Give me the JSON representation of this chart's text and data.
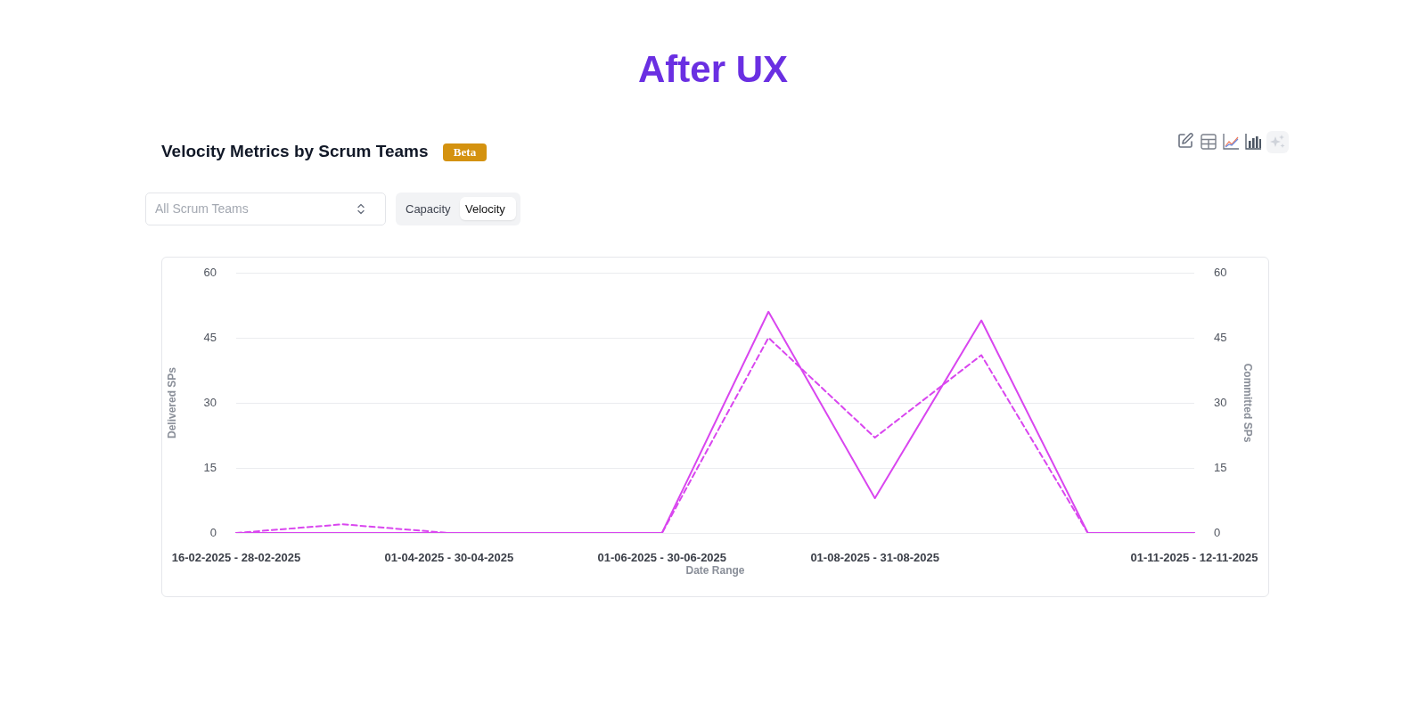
{
  "chart_data": {
    "type": "line",
    "title": "After UX",
    "subtitle": "Velocity Metrics by Scrum Teams",
    "xlabel": "Date Range",
    "ylabel": "Delivered SPs",
    "y2label": "Committed SPs",
    "annotations": [
      "Beta",
      "All Scrum Teams",
      "Capacity",
      "Velocity"
    ],
    "categories": [
      "16-02-2025 - 28-02-2025",
      null,
      "01-04-2025 - 30-04-2025",
      null,
      "01-06-2025 - 30-06-2025",
      null,
      "01-08-2025 - 31-08-2025",
      null,
      null,
      "01-11-2025 - 12-11-2025"
    ],
    "series": [
      {
        "color": "#d946ef",
        "line_style": "solid",
        "values": [
          0,
          0,
          0,
          0,
          0,
          51,
          8,
          49,
          0,
          0
        ]
      },
      {
        "color": "#d946ef",
        "line_style": "dashed",
        "axis": "y2",
        "values": [
          0,
          2,
          0,
          0,
          0,
          45,
          22,
          41,
          0,
          0
        ]
      }
    ],
    "ylim": [
      0,
      60
    ],
    "yticks": [
      0,
      15,
      30,
      45,
      60
    ],
    "y2lim": [
      0,
      60
    ],
    "y2ticks": [
      0,
      15,
      30,
      45,
      60
    ],
    "grid": "y",
    "legend": false,
    "marker": "none"
  }
}
